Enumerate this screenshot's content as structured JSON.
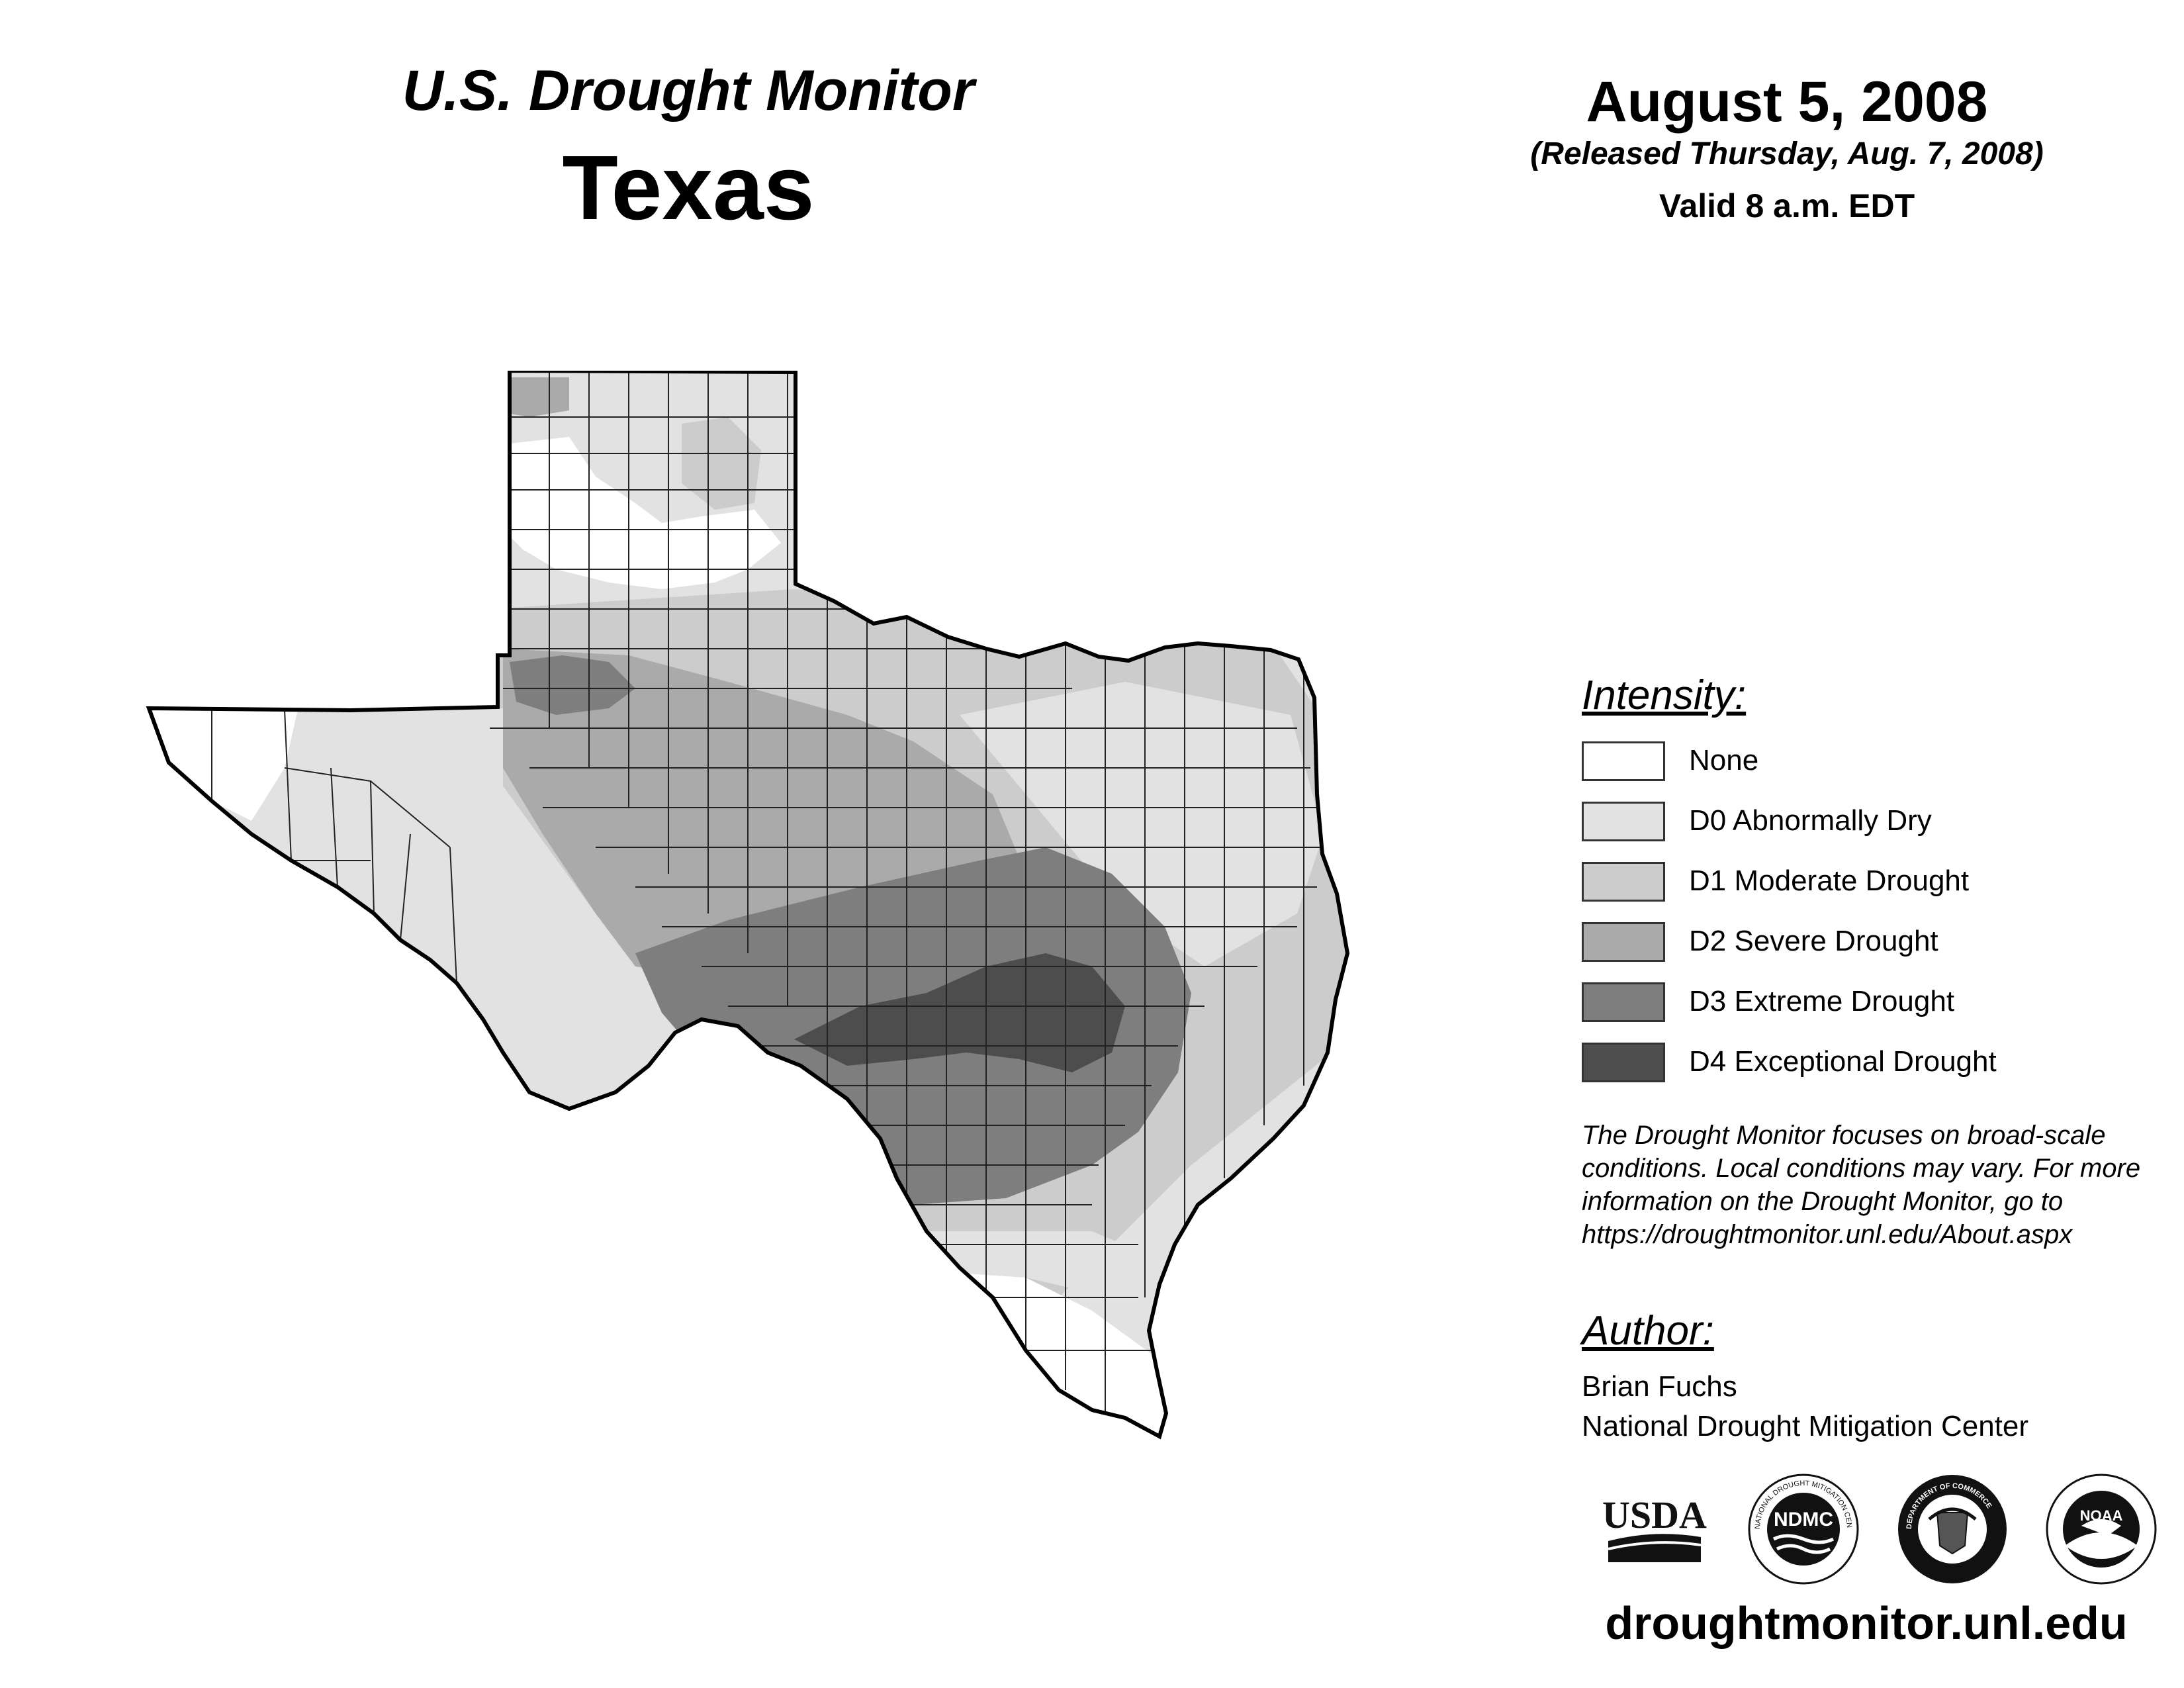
{
  "header": {
    "subtitle": "U.S. Drought Monitor",
    "title": "Texas",
    "date": "August 5, 2008",
    "released": "(Released Thursday, Aug. 7, 2008)",
    "valid": "Valid 8 a.m. EDT"
  },
  "legend": {
    "title": "Intensity:",
    "items": [
      {
        "label": "None",
        "color": "#ffffff"
      },
      {
        "label": "D0 Abnormally Dry",
        "color": "#e2e2e2"
      },
      {
        "label": "D1 Moderate Drought",
        "color": "#cccccc"
      },
      {
        "label": "D2 Severe Drought",
        "color": "#aaaaaa"
      },
      {
        "label": "D3 Extreme Drought",
        "color": "#7e7e7e"
      },
      {
        "label": "D4 Exceptional Drought",
        "color": "#4d4d4d"
      }
    ]
  },
  "note": "The Drought Monitor focuses on broad-scale conditions. Local conditions may vary. For more information on the Drought Monitor, go to https://droughtmonitor.unl.edu/About.aspx",
  "author": {
    "title": "Author:",
    "name": "Brian Fuchs",
    "org": "National Drought Mitigation Center"
  },
  "logos": {
    "usda": "USDA",
    "ndmc": "NDMC",
    "ndmc_ring": "NATIONAL DROUGHT MITIGATION CENTER",
    "commerce_ring": "DEPARTMENT OF COMMERCE",
    "noaa": "NOAA"
  },
  "website": "droughtmonitor.unl.edu",
  "map": {
    "region": "Texas",
    "fill_colors": {
      "none": "#ffffff",
      "d0": "#e2e2e2",
      "d1": "#cccccc",
      "d2": "#aaaaaa",
      "d3": "#7e7e7e",
      "d4": "#4d4d4d"
    }
  }
}
